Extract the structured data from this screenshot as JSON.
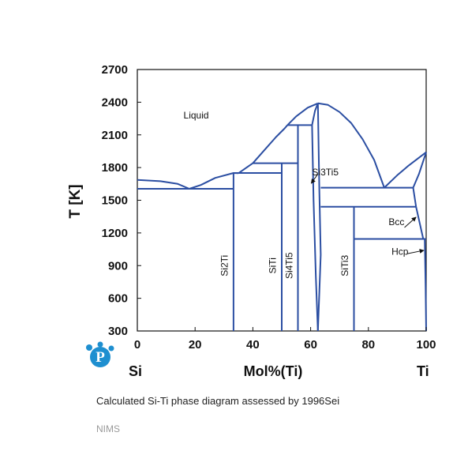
{
  "chart_data": {
    "type": "diagram",
    "title": "",
    "xlabel": "Mol%(Ti)",
    "ylabel": "T [K]",
    "x_end_labels": {
      "left": "Si",
      "right": "Ti"
    },
    "xlim": [
      0,
      100
    ],
    "ylim": [
      300,
      2700
    ],
    "xticks": [
      0,
      20,
      40,
      60,
      80,
      100
    ],
    "yticks": [
      300,
      600,
      900,
      1200,
      1500,
      1800,
      2100,
      2400,
      2700
    ],
    "grid": false,
    "line_color": "#2b4ea2",
    "curves": [
      {
        "name": "liquidus-si-side",
        "points": [
          [
            0,
            1687
          ],
          [
            8,
            1675
          ],
          [
            14,
            1650
          ],
          [
            18,
            1605
          ]
        ]
      },
      {
        "name": "liquidus-si2ti",
        "points": [
          [
            18,
            1605
          ],
          [
            22,
            1640
          ],
          [
            27,
            1705
          ],
          [
            33.3,
            1750
          ],
          [
            35,
            1748
          ]
        ]
      },
      {
        "name": "liquidus-siti",
        "points": [
          [
            35,
            1748
          ],
          [
            40,
            1840
          ]
        ]
      },
      {
        "name": "liquidus-si4ti5",
        "points": [
          [
            40,
            1840
          ],
          [
            44,
            1960
          ],
          [
            48,
            2080
          ],
          [
            51,
            2160
          ],
          [
            52,
            2190
          ]
        ]
      },
      {
        "name": "liquidus-si3ti5",
        "points": [
          [
            52,
            2190
          ],
          [
            55,
            2270
          ],
          [
            59,
            2350
          ],
          [
            62.5,
            2390
          ]
        ]
      },
      {
        "name": "liquidus-ti-side",
        "points": [
          [
            62.5,
            2390
          ],
          [
            66,
            2375
          ],
          [
            70,
            2310
          ],
          [
            74,
            2210
          ],
          [
            78,
            2060
          ],
          [
            82,
            1870
          ],
          [
            85.5,
            1615
          ]
        ]
      },
      {
        "name": "liquidus-bcc",
        "points": [
          [
            85.5,
            1615
          ],
          [
            90,
            1730
          ],
          [
            94,
            1820
          ],
          [
            97,
            1880
          ],
          [
            100,
            1941
          ]
        ]
      },
      {
        "name": "solidus-bcc",
        "points": [
          [
            95.5,
            1615
          ],
          [
            97.5,
            1740
          ],
          [
            99,
            1860
          ],
          [
            100,
            1941
          ]
        ]
      },
      {
        "name": "si3ti5-left-boundary",
        "points": [
          [
            60.5,
            2190
          ],
          [
            61,
            1500
          ],
          [
            61.8,
            800
          ],
          [
            62.5,
            300
          ]
        ]
      },
      {
        "name": "si3ti5-right-boundary",
        "points": [
          [
            62.5,
            2390
          ],
          [
            63,
            1600
          ],
          [
            63.5,
            1000
          ],
          [
            62.5,
            300
          ]
        ]
      },
      {
        "name": "si3ti5-top-left",
        "points": [
          [
            60.5,
            2190
          ],
          [
            61.5,
            2320
          ],
          [
            62.5,
            2390
          ]
        ]
      },
      {
        "name": "bcc-solvus",
        "points": [
          [
            95.5,
            1615
          ],
          [
            96.5,
            1440
          ],
          [
            99,
            1145
          ],
          [
            99.5,
            1145
          ]
        ]
      },
      {
        "name": "hcp-boundary",
        "points": [
          [
            99.5,
            1145
          ],
          [
            99.8,
            700
          ],
          [
            100,
            300
          ]
        ]
      }
    ],
    "horizontal_lines": [
      {
        "y": 1605,
        "x": [
          0,
          33.3
        ]
      },
      {
        "y": 1750,
        "x": [
          33.3,
          50
        ]
      },
      {
        "y": 1840,
        "x": [
          40,
          55.6
        ]
      },
      {
        "y": 2190,
        "x": [
          52,
          60.5
        ]
      },
      {
        "y": 1615,
        "x": [
          63.5,
          95.5
        ]
      },
      {
        "y": 1440,
        "x": [
          63.5,
          96.5
        ]
      },
      {
        "y": 1145,
        "x": [
          75,
          100
        ]
      }
    ],
    "vertical_lines": [
      {
        "x": 33.3,
        "y": [
          300,
          1750
        ]
      },
      {
        "x": 50,
        "y": [
          300,
          1840
        ]
      },
      {
        "x": 55.6,
        "y": [
          300,
          2190
        ]
      },
      {
        "x": 75,
        "y": [
          300,
          1440
        ]
      }
    ],
    "labels": [
      {
        "text": "Liquid",
        "x": 16,
        "y": 2250,
        "rotate": false
      },
      {
        "text": "Si3Ti5",
        "x": 60.5,
        "y": 1730,
        "rotate": false
      },
      {
        "text": "Bcc",
        "x": 87,
        "y": 1270,
        "rotate": false
      },
      {
        "text": "Hcp",
        "x": 88,
        "y": 1000,
        "rotate": false
      },
      {
        "text": "Si2Ti",
        "x": 31.3,
        "y": 900,
        "rotate": true
      },
      {
        "text": "SiTi",
        "x": 48,
        "y": 900,
        "rotate": true
      },
      {
        "text": "Si4Ti5",
        "x": 53.7,
        "y": 900,
        "rotate": true
      },
      {
        "text": "SiTi3",
        "x": 73,
        "y": 900,
        "rotate": true
      }
    ],
    "arrows": [
      {
        "from": [
          62.5,
          1740
        ],
        "to": [
          60.2,
          1655
        ]
      },
      {
        "from": [
          92.5,
          1250
        ],
        "to": [
          96.5,
          1345
        ]
      },
      {
        "from": [
          93.5,
          1010
        ],
        "to": [
          99.2,
          1040
        ]
      }
    ]
  },
  "caption": "Calculated Si-Ti phase diagram assessed by 1996Sei",
  "source": "NIMS",
  "logo": {
    "letter": "P",
    "color": "#1e8fd0"
  }
}
